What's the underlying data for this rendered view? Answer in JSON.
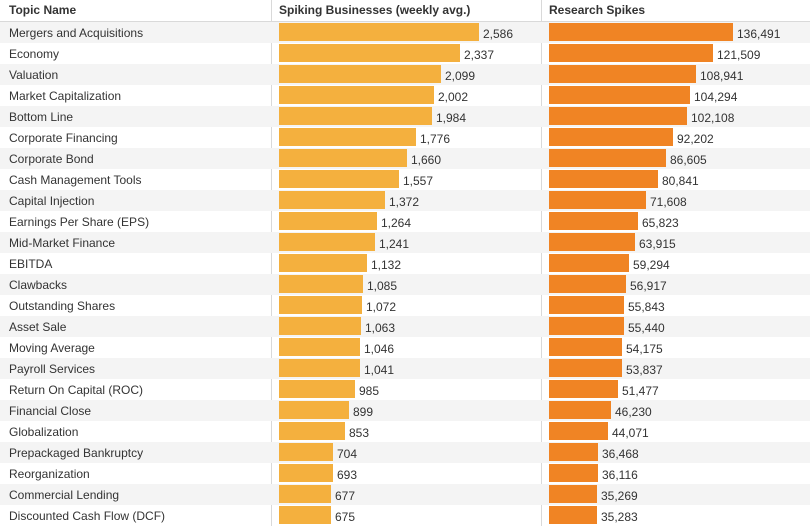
{
  "columns": {
    "topic": "Topic Name",
    "businesses": "Spiking Businesses (weekly avg.)",
    "research": "Research Spikes"
  },
  "colors": {
    "businesses_bar": "#f4b03e",
    "research_bar": "#f08424"
  },
  "chart_data": {
    "type": "bar",
    "orientation": "horizontal",
    "categories": [
      "Mergers and Acquisitions",
      "Economy",
      "Valuation",
      "Market Capitalization",
      "Bottom Line",
      "Corporate Financing",
      "Corporate Bond",
      "Cash Management Tools",
      "Capital Injection",
      "Earnings Per Share (EPS)",
      "Mid-Market Finance",
      "EBITDA",
      "Clawbacks",
      "Outstanding Shares",
      "Asset Sale",
      "Moving Average",
      "Payroll Services",
      "Return On Capital (ROC)",
      "Financial Close",
      "Globalization",
      "Prepackaged Bankruptcy",
      "Reorganization",
      "Commercial Lending",
      "Discounted Cash Flow (DCF)"
    ],
    "series": [
      {
        "name": "Spiking Businesses (weekly avg.)",
        "values": [
          2586,
          2337,
          2099,
          2002,
          1984,
          1776,
          1660,
          1557,
          1372,
          1264,
          1241,
          1132,
          1085,
          1072,
          1063,
          1046,
          1041,
          985,
          899,
          853,
          704,
          693,
          677,
          675
        ],
        "labels": [
          "2,586",
          "2,337",
          "2,099",
          "2,002",
          "1,984",
          "1,776",
          "1,660",
          "1,557",
          "1,372",
          "1,264",
          "1,241",
          "1,132",
          "1,085",
          "1,072",
          "1,063",
          "1,046",
          "1,041",
          "985",
          "899",
          "853",
          "704",
          "693",
          "677",
          "675"
        ]
      },
      {
        "name": "Research Spikes",
        "values": [
          136491,
          121509,
          108941,
          104294,
          102108,
          92202,
          86605,
          80841,
          71608,
          65823,
          63915,
          59294,
          56917,
          55843,
          55440,
          54175,
          53837,
          51477,
          46230,
          44071,
          36468,
          36116,
          35269,
          35283
        ],
        "labels": [
          "136,491",
          "121,509",
          "108,941",
          "104,294",
          "102,108",
          "92,202",
          "86,605",
          "80,841",
          "71,608",
          "65,823",
          "63,915",
          "59,294",
          "56,917",
          "55,843",
          "55,440",
          "54,175",
          "53,837",
          "51,477",
          "46,230",
          "44,071",
          "36,468",
          "36,116",
          "35,269",
          "35,283"
        ]
      }
    ]
  }
}
